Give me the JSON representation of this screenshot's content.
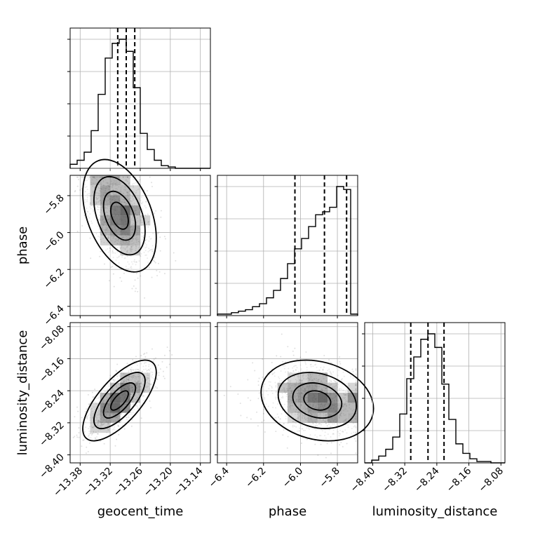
{
  "chart_data": {
    "type": "corner",
    "parameters": [
      "geocent_time",
      "phase",
      "luminosity_distance"
    ],
    "ranges": {
      "geocent_time": [
        -13.4,
        -13.12
      ],
      "phase": [
        -6.45,
        -5.69
      ],
      "luminosity_distance": [
        -8.42,
        -8.07
      ]
    },
    "ticks": {
      "geocent_time": [
        "-13.38",
        "-13.32",
        "-13.26",
        "-13.20",
        "-13.14"
      ],
      "phase": [
        "-6.4",
        "-6.2",
        "-6.0",
        "-5.8"
      ],
      "luminosity_distance": [
        "-8.40",
        "-8.32",
        "-8.24",
        "-8.16",
        "-8.08"
      ]
    },
    "quantiles": {
      "geocent_time": [
        -13.305,
        -13.288,
        -13.271
      ],
      "phase": [
        -6.03,
        -5.87,
        -5.75
      ],
      "luminosity_distance": [
        -8.305,
        -8.262,
        -8.222
      ]
    },
    "histograms": {
      "geocent_time": [
        0.03,
        0.06,
        0.12,
        0.28,
        0.55,
        0.82,
        0.93,
        0.96,
        0.87,
        0.6,
        0.26,
        0.14,
        0.06,
        0.02,
        0.01,
        0,
        0,
        0,
        0,
        0
      ],
      "phase": [
        0.01,
        0.01,
        0.02,
        0.03,
        0.04,
        0.06,
        0.08,
        0.12,
        0.17,
        0.25,
        0.35,
        0.45,
        0.52,
        0.6,
        0.68,
        0.7,
        0.73,
        0.87,
        0.85,
        0.01
      ],
      "luminosity_distance": [
        0.0,
        0.02,
        0.05,
        0.1,
        0.19,
        0.36,
        0.62,
        0.78,
        0.91,
        0.95,
        0.85,
        0.58,
        0.32,
        0.14,
        0.07,
        0.03,
        0.01,
        0.01,
        0,
        0
      ]
    },
    "correlations": {
      "phase_vs_geocent_time": -0.4,
      "luminosity_distance_vs_geocent_time": 0.7,
      "luminosity_distance_vs_phase": -0.2
    },
    "quantile_line_style": "dashed",
    "grid": true
  }
}
